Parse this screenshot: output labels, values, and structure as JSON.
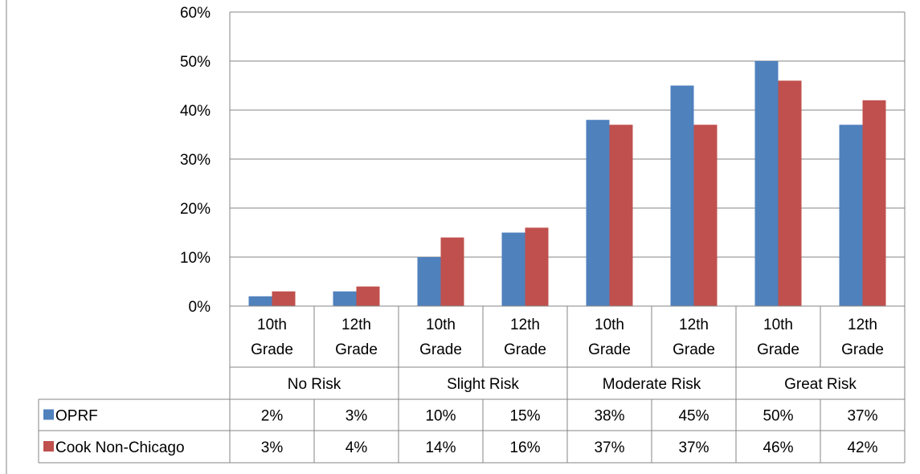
{
  "chart_data": {
    "type": "bar",
    "y_ticks": [
      "0%",
      "10%",
      "20%",
      "30%",
      "40%",
      "50%",
      "60%"
    ],
    "ylim": [
      0,
      60
    ],
    "grid": true,
    "legend": "data-table",
    "groups": [
      {
        "label": "No Risk",
        "sub": [
          {
            "l1": "10th",
            "l2": "Grade"
          },
          {
            "l1": "12th",
            "l2": "Grade"
          }
        ]
      },
      {
        "label": "Slight Risk",
        "sub": [
          {
            "l1": "10th",
            "l2": "Grade"
          },
          {
            "l1": "12th",
            "l2": "Grade"
          }
        ]
      },
      {
        "label": "Moderate Risk",
        "sub": [
          {
            "l1": "10th",
            "l2": "Grade"
          },
          {
            "l1": "12th",
            "l2": "Grade"
          }
        ]
      },
      {
        "label": "Great Risk",
        "sub": [
          {
            "l1": "10th",
            "l2": "Grade"
          },
          {
            "l1": "12th",
            "l2": "Grade"
          }
        ]
      }
    ],
    "series": [
      {
        "name": "OPRF",
        "color": "#4f81bd",
        "values": [
          2,
          3,
          10,
          15,
          38,
          45,
          50,
          37
        ],
        "labels": [
          "2%",
          "3%",
          "10%",
          "15%",
          "38%",
          "45%",
          "50%",
          "37%"
        ]
      },
      {
        "name": "Cook Non-Chicago",
        "color": "#c0504d",
        "values": [
          3,
          4,
          14,
          16,
          37,
          37,
          46,
          42
        ],
        "labels": [
          "3%",
          "4%",
          "14%",
          "16%",
          "37%",
          "37%",
          "46%",
          "42%"
        ]
      }
    ]
  }
}
